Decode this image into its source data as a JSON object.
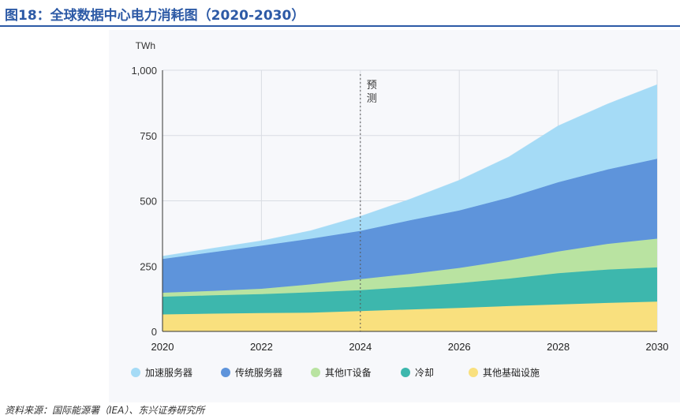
{
  "header": {
    "title": "图18：全球数据中心电力消耗图（2020-2030）"
  },
  "footer": {
    "source": "资料来源：国际能源署（IEA）、东兴证券研究所"
  },
  "chart_data": {
    "type": "area",
    "stacked": true,
    "x": [
      2020,
      2021,
      2022,
      2023,
      2024,
      2025,
      2026,
      2027,
      2028,
      2029,
      2030
    ],
    "xticks": [
      "2020",
      "2022",
      "2024",
      "2026",
      "2028",
      "2030"
    ],
    "xlim": [
      2020,
      2030
    ],
    "ylim": [
      0,
      1000
    ],
    "yticks": [
      "0",
      "250",
      "500",
      "750",
      "1,000"
    ],
    "ylabel": "TWh",
    "grid": true,
    "legend_position": "bottom",
    "annotation": {
      "text": "预测",
      "x": 2024
    },
    "series": [
      {
        "name": "其他基础设施",
        "color": "#f9e07e",
        "values": [
          65,
          68,
          70,
          72,
          78,
          84,
          90,
          97,
          103,
          109,
          114
        ]
      },
      {
        "name": "冷却",
        "color": "#3db7ad",
        "values": [
          68,
          70,
          73,
          78,
          80,
          86,
          95,
          105,
          120,
          128,
          131
        ]
      },
      {
        "name": "其他IT设备",
        "color": "#b9e3a1",
        "values": [
          15,
          17,
          20,
          30,
          42,
          50,
          58,
          70,
          83,
          98,
          110
        ]
      },
      {
        "name": "传统服务器",
        "color": "#5e94db",
        "values": [
          129,
          148,
          165,
          175,
          185,
          205,
          220,
          240,
          265,
          285,
          306
        ]
      },
      {
        "name": "加速服务器",
        "color": "#a5dbf6",
        "values": [
          10,
          14,
          18,
          30,
          55,
          80,
          115,
          155,
          215,
          250,
          283
        ]
      }
    ],
    "legend_order": [
      "加速服务器",
      "传统服务器",
      "其他IT设备",
      "冷却",
      "其他基础设施"
    ]
  }
}
